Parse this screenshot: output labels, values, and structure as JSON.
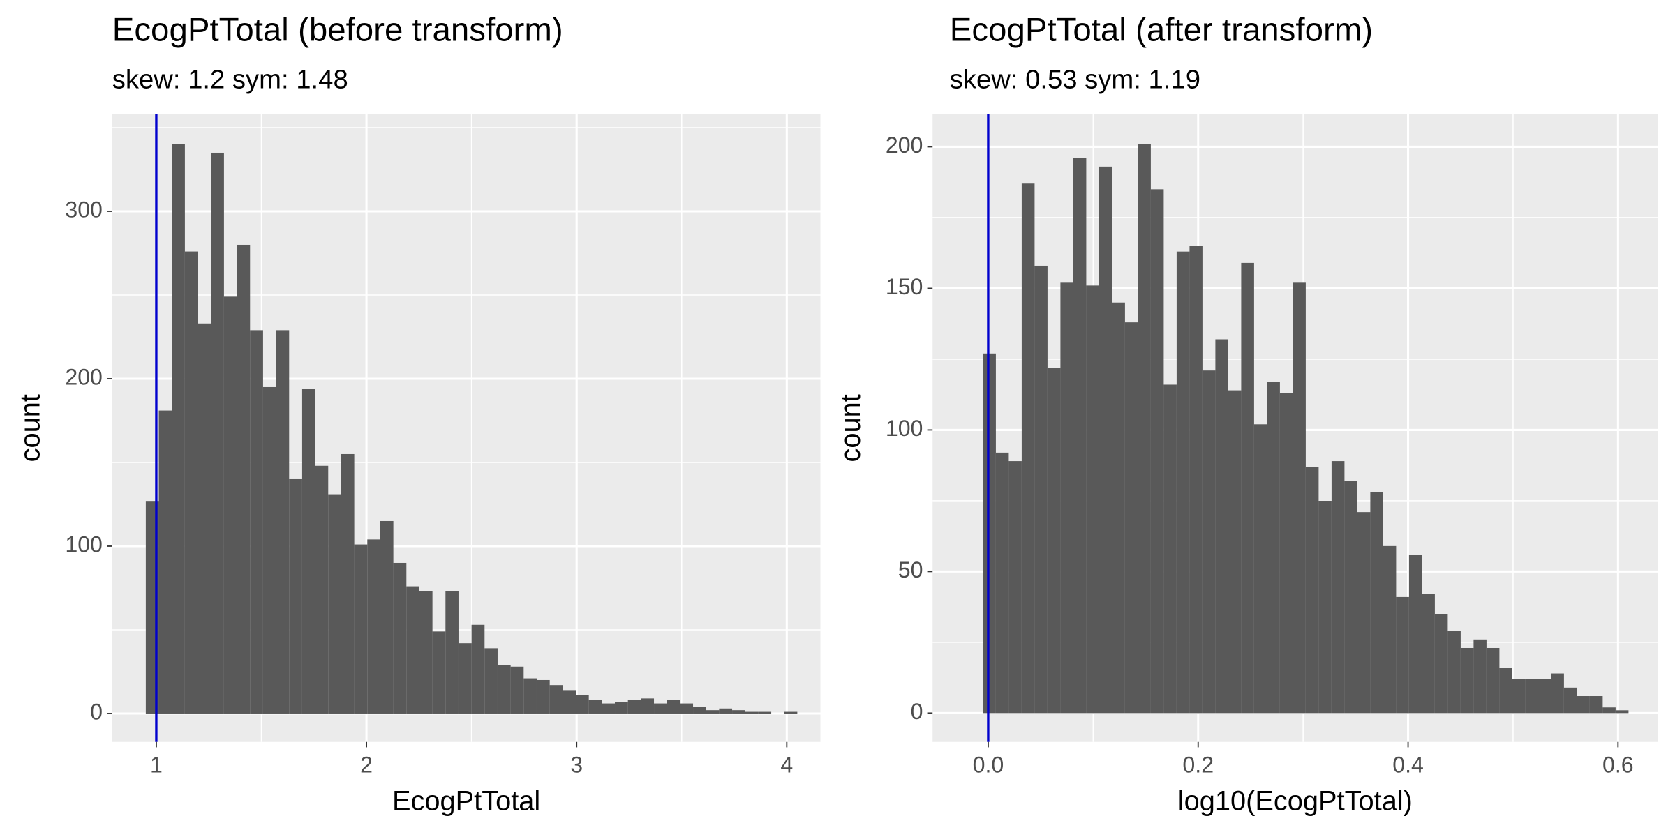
{
  "chart_data": [
    {
      "type": "histogram",
      "title": "EcogPtTotal (before transform)",
      "subtitle": "skew: 1.2 sym: 1.48",
      "x_label": "EcogPtTotal",
      "y_label": "count",
      "color": "#595959",
      "bins": [
        0.95,
        1.012,
        1.074,
        1.136,
        1.198,
        1.26,
        1.322,
        1.384,
        1.446,
        1.508,
        1.57,
        1.632,
        1.694,
        1.756,
        1.818,
        1.88,
        1.942,
        2.004,
        2.066,
        2.128,
        2.19,
        2.252,
        2.314,
        2.376,
        2.438,
        2.5,
        2.562,
        2.624,
        2.686,
        2.748,
        2.81,
        2.872,
        2.934,
        2.996,
        3.058,
        3.12,
        3.182,
        3.244,
        3.306,
        3.368,
        3.43,
        3.492,
        3.554,
        3.616,
        3.678,
        3.74,
        3.802,
        3.864,
        3.926,
        3.988,
        4.05
      ],
      "values": [
        127,
        181,
        340,
        276,
        233,
        335,
        249,
        280,
        229,
        195,
        229,
        140,
        194,
        148,
        131,
        155,
        101,
        104,
        115,
        90,
        76,
        73,
        49,
        73,
        42,
        53,
        39,
        29,
        28,
        21,
        20,
        17,
        14,
        11,
        8,
        6,
        7,
        8,
        9,
        6,
        8,
        6,
        4,
        2,
        3,
        2,
        1,
        1,
        0,
        1
      ],
      "vline": 1,
      "vline_color": "#0000cd",
      "xlim": [
        0.79,
        4.16
      ],
      "xticks": [
        1,
        2,
        3,
        4
      ],
      "ylim": [
        -17,
        358
      ],
      "yticks": [
        0,
        100,
        200,
        300
      ],
      "grid": true
    },
    {
      "type": "histogram",
      "title": "EcogPtTotal (after transform)",
      "subtitle": "skew: 0.53 sym: 1.19",
      "x_label": "log10(EcogPtTotal)",
      "y_label": "count",
      "color": "#595959",
      "bins": [
        -0.005,
        0.0073,
        0.0196,
        0.0319,
        0.0442,
        0.0565,
        0.0688,
        0.0811,
        0.0934,
        0.1057,
        0.118,
        0.1303,
        0.1426,
        0.1549,
        0.1672,
        0.1795,
        0.1918,
        0.2041,
        0.2164,
        0.2287,
        0.241,
        0.2533,
        0.2656,
        0.2779,
        0.2902,
        0.3025,
        0.3148,
        0.3271,
        0.3394,
        0.3517,
        0.364,
        0.3763,
        0.3886,
        0.4009,
        0.4132,
        0.4255,
        0.4378,
        0.4501,
        0.4624,
        0.4747,
        0.487,
        0.4993,
        0.5116,
        0.5239,
        0.5362,
        0.5485,
        0.5608,
        0.5731,
        0.5854,
        0.5977,
        0.61
      ],
      "values": [
        127,
        92,
        89,
        187,
        158,
        122,
        152,
        196,
        151,
        193,
        145,
        138,
        201,
        185,
        116,
        163,
        165,
        121,
        132,
        114,
        159,
        102,
        117,
        113,
        152,
        87,
        75,
        89,
        82,
        71,
        78,
        59,
        41,
        56,
        42,
        35,
        29,
        23,
        26,
        23,
        16,
        12,
        12,
        12,
        14,
        9,
        6,
        6,
        2,
        1
      ],
      "vline": 0,
      "vline_color": "#0000cd",
      "xlim": [
        -0.053,
        0.638
      ],
      "xticks": [
        {
          "value": 0,
          "label": "0.0"
        },
        0.2,
        0.4,
        0.6
      ],
      "ylim": [
        -10.2,
        211.5
      ],
      "yticks": [
        0,
        50,
        100,
        150,
        200
      ],
      "grid": true
    }
  ]
}
